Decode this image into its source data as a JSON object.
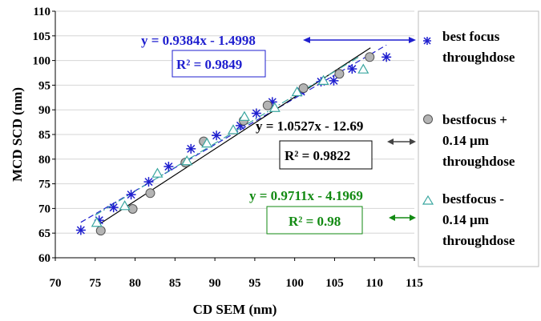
{
  "chart_data": {
    "type": "scatter",
    "xlabel": "CD SEM (nm)",
    "ylabel": "MCD SCD (nm)",
    "xlim": [
      70,
      115
    ],
    "ylim": [
      60,
      110
    ],
    "x_ticks": [
      "70",
      "75",
      "80",
      "85",
      "90",
      "95",
      "100",
      "105",
      "110",
      "115"
    ],
    "y_ticks": [
      "60",
      "65",
      "70",
      "75",
      "80",
      "85",
      "90",
      "95",
      "100",
      "105",
      "110"
    ],
    "grid": "horizontal",
    "legend_position": "right",
    "series": [
      {
        "name": "best focus throughdose",
        "legend_lines": [
          "best focus",
          "throughdose"
        ],
        "marker": "asterisk",
        "color": "#1f1fcf",
        "points": [
          [
            73.2,
            65.6
          ],
          [
            75.5,
            67.6
          ],
          [
            77.3,
            70.2
          ],
          [
            79.5,
            72.8
          ],
          [
            81.7,
            75.4
          ],
          [
            84.2,
            78.5
          ],
          [
            87.0,
            82.1
          ],
          [
            90.2,
            84.8
          ],
          [
            93.2,
            86.8
          ],
          [
            95.2,
            89.3
          ],
          [
            97.2,
            91.6
          ],
          [
            100.8,
            93.7
          ],
          [
            103.3,
            95.7
          ],
          [
            104.9,
            95.9
          ],
          [
            107.2,
            98.3
          ],
          [
            111.5,
            100.7
          ]
        ],
        "fit": {
          "equation": "y = 0.9384x - 1.4998",
          "r2": "R² = 0.9849",
          "slope": 0.9384,
          "intercept": -1.4998,
          "range": [
            73.2,
            111.5
          ],
          "style": "dashed"
        }
      },
      {
        "name": "bestfocus + 0.14 µm throughdose",
        "legend_lines": [
          "bestfocus +",
          "0.14 µm",
          "throughdose"
        ],
        "marker": "circle",
        "color": "#b4b4b4",
        "points": [
          [
            75.7,
            65.5
          ],
          [
            79.7,
            69.9
          ],
          [
            81.9,
            73.1
          ],
          [
            86.3,
            79.3
          ],
          [
            88.6,
            83.6
          ],
          [
            93.6,
            87.8
          ],
          [
            96.6,
            90.9
          ],
          [
            101.1,
            94.4
          ],
          [
            105.6,
            97.3
          ],
          [
            109.4,
            100.7
          ]
        ],
        "fit": {
          "equation": "y = 1.0527x - 12.69",
          "r2": "R² = 0.9822",
          "slope": 1.0527,
          "intercept": -12.69,
          "range": [
            75.5,
            109.5
          ],
          "style": "solid"
        }
      },
      {
        "name": "bestfocus - 0.14 µm throughdose",
        "legend_lines": [
          "bestfocus -",
          "0.14 µm",
          "throughdose"
        ],
        "marker": "triangle",
        "color": "#3aa7a0",
        "points": [
          [
            75.2,
            67.1
          ],
          [
            78.7,
            70.5
          ],
          [
            82.8,
            77.1
          ],
          [
            86.5,
            79.6
          ],
          [
            89.0,
            83.2
          ],
          [
            92.3,
            85.9
          ],
          [
            93.7,
            88.6
          ],
          [
            97.5,
            90.4
          ],
          [
            100.3,
            93.6
          ],
          [
            103.6,
            95.9
          ],
          [
            108.6,
            98.2
          ]
        ],
        "fit": {
          "equation": "y = 0.9711x - 4.1969",
          "r2": "R² = 0.98",
          "slope": 0.9711,
          "intercept": -4.1969,
          "range": [
            75.0,
            108.0
          ],
          "style": "dashdot"
        }
      }
    ]
  },
  "colors": {
    "eq_blue": "#1f1fcf",
    "eq_black": "#000000",
    "eq_green": "#128a12",
    "grid": "#d6d6d6",
    "legend_border": "#bdbdbd"
  }
}
